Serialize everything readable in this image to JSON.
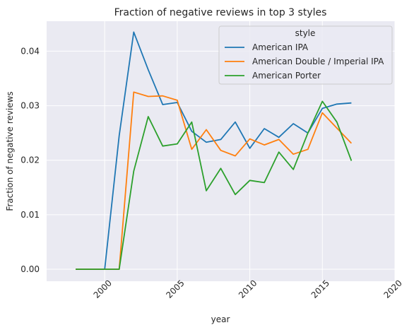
{
  "chart_data": {
    "type": "line",
    "title": "Fraction of negative reviews in top 3 styles",
    "xlabel": "year",
    "ylabel": "Fraction of negative reviews",
    "xlim": [
      1996,
      2020
    ],
    "ylim": [
      -0.0022,
      0.0455
    ],
    "x_ticks": [
      2000,
      2005,
      2010,
      2015,
      2020
    ],
    "y_ticks": [
      0.0,
      0.01,
      0.02,
      0.03,
      0.04
    ],
    "grid": true,
    "legend_title": "style",
    "legend_position": "upper right",
    "background_color": "#EAEAF2",
    "series": [
      {
        "name": "American IPA",
        "color": "#1f77b4",
        "x": [
          1998,
          1999,
          2000,
          2001,
          2002,
          2003,
          2004,
          2005,
          2006,
          2007,
          2008,
          2009,
          2010,
          2011,
          2012,
          2013,
          2014,
          2015,
          2016,
          2017
        ],
        "y": [
          0.0,
          0.0,
          0.0,
          0.0245,
          0.0435,
          0.0366,
          0.0302,
          0.0306,
          0.0253,
          0.0233,
          0.0238,
          0.027,
          0.0222,
          0.0258,
          0.0242,
          0.0267,
          0.025,
          0.0295,
          0.0303,
          0.0305
        ]
      },
      {
        "name": "American Double / Imperial IPA",
        "color": "#ff7f0e",
        "x": [
          1998,
          1999,
          2000,
          2001,
          2002,
          2003,
          2004,
          2005,
          2006,
          2007,
          2008,
          2009,
          2010,
          2011,
          2012,
          2013,
          2014,
          2015,
          2016,
          2017
        ],
        "y": [
          0.0,
          0.0,
          0.0,
          0.0,
          0.0325,
          0.0317,
          0.0318,
          0.031,
          0.022,
          0.0256,
          0.0218,
          0.0208,
          0.0239,
          0.0228,
          0.0238,
          0.0211,
          0.022,
          0.0287,
          0.0259,
          0.0231
        ]
      },
      {
        "name": "American Porter",
        "color": "#2ca02c",
        "x": [
          1998,
          1999,
          2000,
          2001,
          2002,
          2003,
          2004,
          2005,
          2006,
          2007,
          2008,
          2009,
          2010,
          2011,
          2012,
          2013,
          2014,
          2015,
          2016,
          2017
        ],
        "y": [
          0.0,
          0.0,
          0.0,
          0.0,
          0.018,
          0.028,
          0.0226,
          0.023,
          0.027,
          0.0144,
          0.0185,
          0.0137,
          0.0163,
          0.0159,
          0.0215,
          0.0183,
          0.025,
          0.0308,
          0.027,
          0.0199
        ]
      }
    ]
  }
}
